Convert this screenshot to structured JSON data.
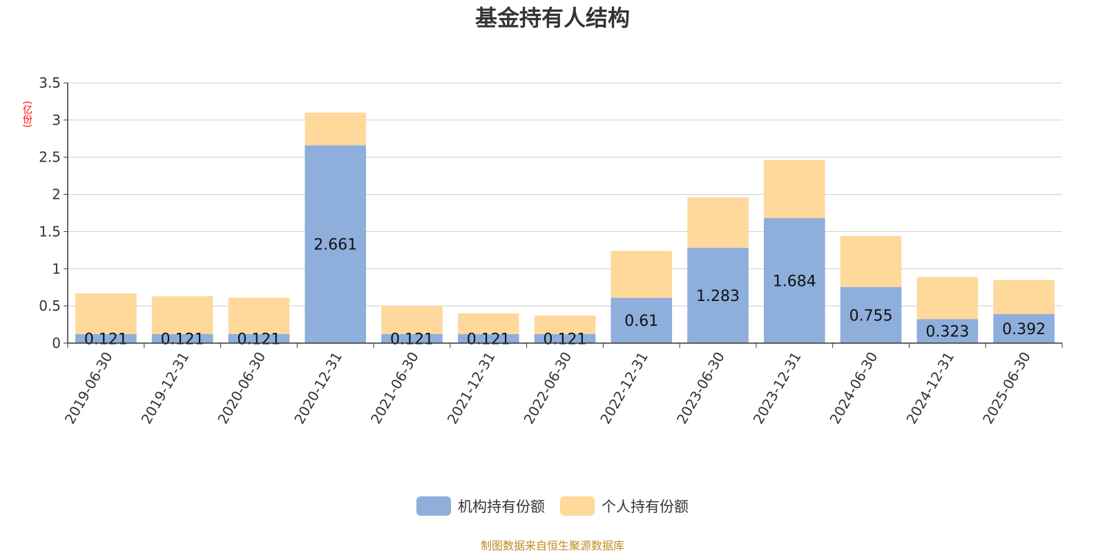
{
  "colors": {
    "institutional": "#8eaedb",
    "individual": "#fed99b",
    "grid": "#cccccc",
    "axis": "#333333",
    "text": "#333333",
    "unit": "#ff0000",
    "source": "#c08a1f"
  },
  "chart_data": {
    "type": "bar",
    "stacked": true,
    "title": "基金持有人结构",
    "unit_label": "(亿份)",
    "source_note": "制图数据来自恒生聚源数据库",
    "ylim": [
      0,
      3.5
    ],
    "yticks": [
      "0",
      "0.5",
      "1",
      "1.5",
      "2",
      "2.5",
      "3",
      "3.5"
    ],
    "grid": true,
    "legend_position": "bottom-center",
    "categories": [
      "2019-06-30",
      "2019-12-31",
      "2020-06-30",
      "2020-12-31",
      "2021-06-30",
      "2021-12-31",
      "2022-06-30",
      "2022-12-31",
      "2023-06-30",
      "2023-12-31",
      "2024-06-30",
      "2024-12-31",
      "2025-06-30"
    ],
    "series": [
      {
        "name": "机构持有份额",
        "color_key": "institutional",
        "values": [
          0.121,
          0.121,
          0.121,
          2.661,
          0.121,
          0.121,
          0.121,
          0.61,
          1.283,
          1.684,
          0.755,
          0.323,
          0.392
        ],
        "labels": [
          "0.121",
          "0.121",
          "0.121",
          "2.661",
          "0.121",
          "0.121",
          "0.121",
          "0.61",
          "1.283",
          "1.684",
          "0.755",
          "0.323",
          "0.392"
        ]
      },
      {
        "name": "个人持有份额",
        "color_key": "individual",
        "values": [
          0.549,
          0.509,
          0.489,
          0.439,
          0.379,
          0.279,
          0.249,
          0.63,
          0.677,
          0.776,
          0.685,
          0.567,
          0.458
        ]
      }
    ]
  }
}
